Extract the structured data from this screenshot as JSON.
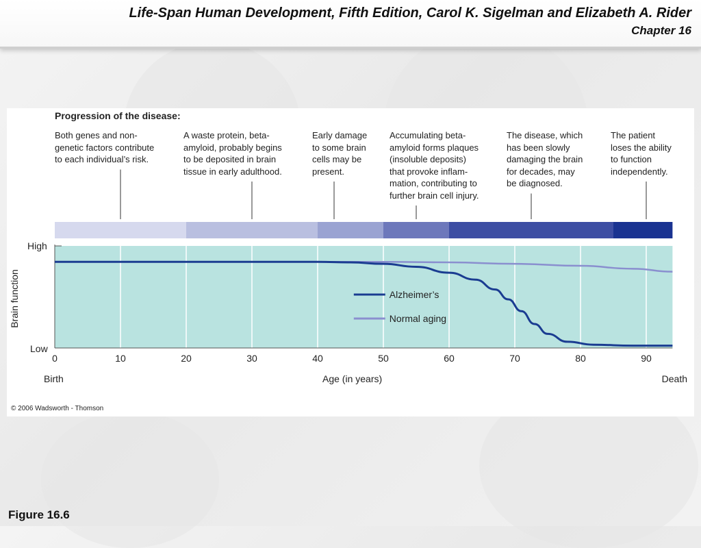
{
  "slide": {
    "title": "Life-Span Human Development, Fifth Edition, Carol K. Sigelman and Elizabeth A. Rider",
    "chapter": "Chapter 16",
    "figure_label": "Figure 16.6"
  },
  "figure": {
    "heading": "Progression of the disease:",
    "copyright": "© 2006 Wadsworth - Thomson",
    "stages": [
      {
        "text": "Both genes and non-\ngenetic factors contribute\nto each individual’s risk.",
        "age": 10
      },
      {
        "text": "A waste protein, beta-\namyloid, probably begins\nto be deposited in brain\ntissue in early adulthood.",
        "age": 30
      },
      {
        "text": "Early damage\nto some brain\ncells may be\npresent.",
        "age": 42.5
      },
      {
        "text": "Accumulating beta-\namyloid forms plaques\n(insoluble deposits)\nthat provoke inflam-\nmation, contributing to\nfurther brain cell injury.",
        "age": 55
      },
      {
        "text": "The disease, which\nhas been slowly\ndamaging the brain\nfor decades, may\nbe diagnosed.",
        "age": 72.5
      },
      {
        "text": "The patient\nloses the ability\nto function\nindependently.",
        "age": 90
      }
    ],
    "severity_bar": [
      {
        "from": 0,
        "to": 20,
        "color": "#d6d9ee"
      },
      {
        "from": 20,
        "to": 40,
        "color": "#b9bfe0"
      },
      {
        "from": 40,
        "to": 50,
        "color": "#9aa3d2"
      },
      {
        "from": 50,
        "to": 60,
        "color": "#6d78bb"
      },
      {
        "from": 60,
        "to": 85,
        "color": "#3d4ea3"
      },
      {
        "from": 85,
        "to": 94,
        "color": "#1a3391"
      }
    ]
  },
  "chart_data": {
    "type": "line",
    "xlabel": "Age (in years)",
    "ylabel": "Brain function",
    "xlim": [
      0,
      94
    ],
    "ylim": [
      "Low",
      "High"
    ],
    "x_ticks": [
      0,
      10,
      20,
      30,
      40,
      50,
      60,
      70,
      80,
      90
    ],
    "x_start_label": "Birth",
    "x_end_label": "Death",
    "y_tick_labels": [
      "High",
      "Low"
    ],
    "grid": "vertical",
    "background_color": "#b9e3e0",
    "legend": "inside-center",
    "series": [
      {
        "name": "Alzheimer’s",
        "color": "#1a3c91",
        "points": [
          [
            0,
            0.88
          ],
          [
            40,
            0.88
          ],
          [
            45,
            0.875
          ],
          [
            50,
            0.86
          ],
          [
            55,
            0.83
          ],
          [
            60,
            0.77
          ],
          [
            64,
            0.7
          ],
          [
            67,
            0.6
          ],
          [
            69,
            0.5
          ],
          [
            71,
            0.38
          ],
          [
            73,
            0.25
          ],
          [
            75,
            0.15
          ],
          [
            78,
            0.07
          ],
          [
            82,
            0.04
          ],
          [
            88,
            0.03
          ],
          [
            94,
            0.03
          ]
        ]
      },
      {
        "name": "Normal aging",
        "color": "#8a8fcf",
        "points": [
          [
            0,
            0.88
          ],
          [
            50,
            0.88
          ],
          [
            60,
            0.875
          ],
          [
            70,
            0.86
          ],
          [
            80,
            0.84
          ],
          [
            88,
            0.81
          ],
          [
            94,
            0.78
          ]
        ]
      }
    ]
  }
}
